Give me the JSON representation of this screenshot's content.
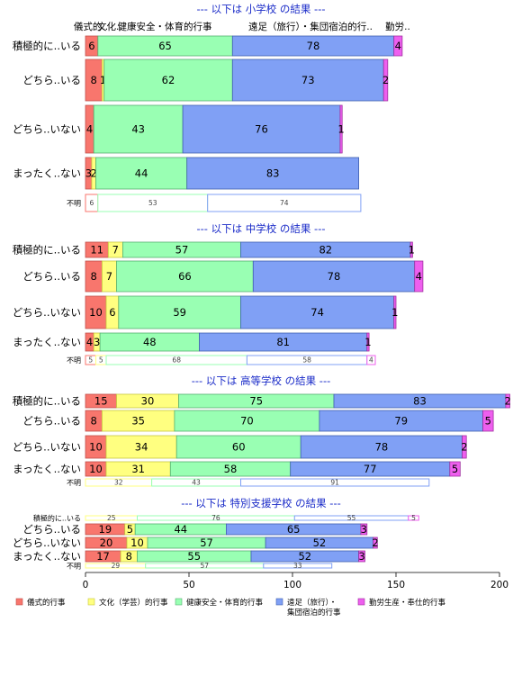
{
  "chart_data": {
    "type": "bar",
    "orientation": "horizontal",
    "stacked": true,
    "xlim": [
      0,
      200
    ],
    "x_ticks": [
      "0",
      "50",
      "100",
      "150",
      "200"
    ],
    "grid": false,
    "legend_position": "bottom",
    "legend": [
      {
        "key": "ceremonial",
        "label": "儀式的行事",
        "color": "#F8766D"
      },
      {
        "key": "cultural",
        "label": "文化（学芸）的行事",
        "color": "#FFFF80"
      },
      {
        "key": "health",
        "label": "健康安全・体育的行事",
        "color": "#99FFB3"
      },
      {
        "key": "excursion",
        "label": "遠足（旅行）・\n集団宿泊的行事",
        "color": "#80A0F5"
      },
      {
        "key": "labor",
        "label": "勤労生産・奉仕的行事",
        "color": "#EE5FEE"
      }
    ],
    "header_labels": [
      "儀式的..",
      "文化..",
      "健康安全・体育的行事",
      "遠足（旅行）・集団宿泊的行..",
      "勤労.."
    ],
    "panels": [
      {
        "title": "--- 以下は 小学校 の結果 ---",
        "rows": [
          {
            "label": "積極的に..いる",
            "values": [
              6,
              0,
              65,
              78,
              4
            ],
            "labels": [
              "6",
              "",
              "65",
              "78",
              "4"
            ]
          },
          {
            "label": "どちら..いる",
            "values": [
              8,
              1,
              62,
              73,
              2
            ],
            "labels": [
              "8",
              "1",
              "62",
              "73",
              "2"
            ]
          },
          {
            "label": "どちら..いない",
            "values": [
              4,
              0,
              43,
              76,
              1
            ],
            "labels": [
              "4",
              "",
              "43",
              "76",
              "1"
            ]
          },
          {
            "label": "まったく..ない",
            "values": [
              3,
              2,
              44,
              83,
              0
            ],
            "labels": [
              "3",
              "2",
              "44",
              "83",
              ""
            ]
          },
          {
            "label": "不明",
            "values": [
              6,
              0,
              53,
              74,
              0
            ],
            "labels": [
              "6",
              "",
              "53",
              "74",
              ""
            ],
            "small": true
          }
        ]
      },
      {
        "title": "--- 以下は 中学校 の結果 ---",
        "rows": [
          {
            "label": "積極的に..いる",
            "values": [
              11,
              7,
              57,
              82,
              1
            ],
            "labels": [
              "11",
              "7",
              "57",
              "82",
              "1"
            ]
          },
          {
            "label": "どちら..いる",
            "values": [
              8,
              7,
              66,
              78,
              4
            ],
            "labels": [
              "8",
              "7",
              "66",
              "78",
              "4"
            ]
          },
          {
            "label": "どちら..いない",
            "values": [
              10,
              6,
              59,
              74,
              1
            ],
            "labels": [
              "10",
              "6",
              "59",
              "74",
              "1"
            ]
          },
          {
            "label": "まったく..ない",
            "values": [
              4,
              3,
              48,
              81,
              1
            ],
            "labels": [
              "4",
              "3",
              "48",
              "81",
              "1"
            ]
          },
          {
            "label": "不明",
            "values": [
              5,
              5,
              68,
              58,
              4
            ],
            "labels": [
              "5",
              "5",
              "68",
              "58",
              "4"
            ],
            "small": true
          }
        ]
      },
      {
        "title": "--- 以下は 高等学校 の結果 ---",
        "rows": [
          {
            "label": "積極的に..いる",
            "values": [
              15,
              30,
              75,
              83,
              2
            ],
            "labels": [
              "15",
              "30",
              "75",
              "83",
              "2"
            ]
          },
          {
            "label": "どちら..いる",
            "values": [
              8,
              35,
              70,
              79,
              5
            ],
            "labels": [
              "8",
              "35",
              "70",
              "79",
              "5"
            ]
          },
          {
            "label": "どちら..いない",
            "values": [
              10,
              34,
              60,
              78,
              2
            ],
            "labels": [
              "10",
              "34",
              "60",
              "78",
              "2"
            ]
          },
          {
            "label": "まったく..ない",
            "values": [
              10,
              31,
              58,
              77,
              5
            ],
            "labels": [
              "10",
              "31",
              "58",
              "77",
              "5"
            ]
          },
          {
            "label": "不明",
            "values": [
              0,
              32,
              43,
              91,
              0
            ],
            "labels": [
              "",
              "32",
              "43",
              "91",
              ""
            ],
            "small": true
          }
        ]
      },
      {
        "title": "--- 以下は 特別支援学校 の結果 ---",
        "rows": [
          {
            "label": "積極的に..いる",
            "values": [
              0,
              25,
              76,
              55,
              5
            ],
            "labels": [
              "",
              "25",
              "76",
              "55",
              "5"
            ],
            "small": true
          },
          {
            "label": "どちら..いる",
            "values": [
              19,
              5,
              44,
              65,
              3
            ],
            "labels": [
              "19",
              "5",
              "44",
              "65",
              "3"
            ]
          },
          {
            "label": "どちら..いない",
            "values": [
              20,
              10,
              57,
              52,
              2
            ],
            "labels": [
              "20",
              "10",
              "57",
              "52",
              "2"
            ]
          },
          {
            "label": "まったく..ない",
            "values": [
              17,
              8,
              55,
              52,
              3
            ],
            "labels": [
              "17",
              "8",
              "55",
              "52",
              "3"
            ]
          },
          {
            "label": "不明",
            "values": [
              0,
              29,
              57,
              33,
              0
            ],
            "labels": [
              "",
              "29",
              "57",
              "33",
              ""
            ],
            "small": true
          }
        ]
      }
    ]
  }
}
